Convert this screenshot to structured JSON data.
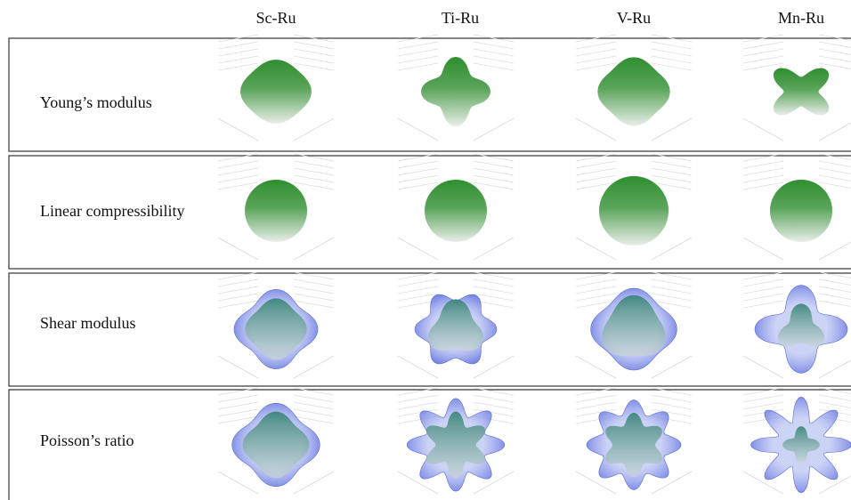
{
  "header": {
    "columns": [
      "Sc-Ru",
      "Ti-Ru",
      "V-Ru",
      "Mn-Ru"
    ]
  },
  "rows": [
    {
      "label": "Young’s modulus"
    },
    {
      "label": "Linear compressibility"
    },
    {
      "label": "Shear modulus"
    },
    {
      "label": "Poisson’s ratio"
    }
  ]
}
